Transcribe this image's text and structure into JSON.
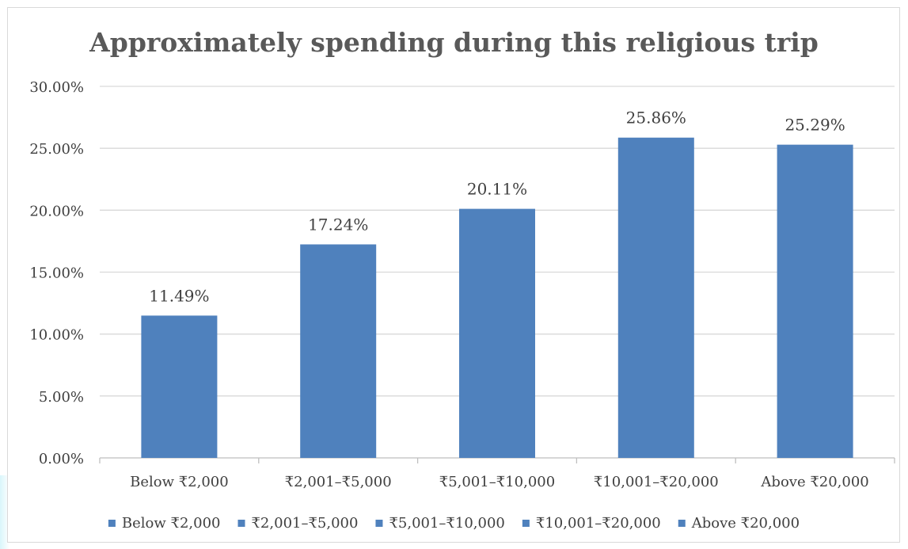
{
  "chart_data": {
    "type": "bar",
    "title": "Approximately spending during this religious trip",
    "xlabel": "",
    "ylabel": "",
    "categories": [
      "Below ₹2,000",
      "₹2,001–₹5,000",
      "₹5,001–₹10,000",
      "₹10,001–₹20,000",
      "Above ₹20,000"
    ],
    "values": [
      11.49,
      17.24,
      20.11,
      25.86,
      25.29
    ],
    "data_labels": [
      "11.49%",
      "17.24%",
      "20.11%",
      "25.86%",
      "25.29%"
    ],
    "ylim": [
      0,
      30
    ],
    "yticks": [
      0,
      5,
      10,
      15,
      20,
      25,
      30
    ],
    "ytick_labels": [
      "0.00%",
      "5.00%",
      "10.00%",
      "15.00%",
      "20.00%",
      "25.00%",
      "30.00%"
    ],
    "grid": true,
    "legend": {
      "position": "bottom",
      "entries": [
        "Below ₹2,000",
        "₹2,001–₹5,000",
        "₹5,001–₹10,000",
        "₹10,001–₹20,000",
        "Above ₹20,000"
      ]
    },
    "colors": {
      "bar": "#4f81bd",
      "grid": "#d9d9d9",
      "axis": "#bfbfbf",
      "text": "#404040",
      "title": "#595959"
    }
  }
}
